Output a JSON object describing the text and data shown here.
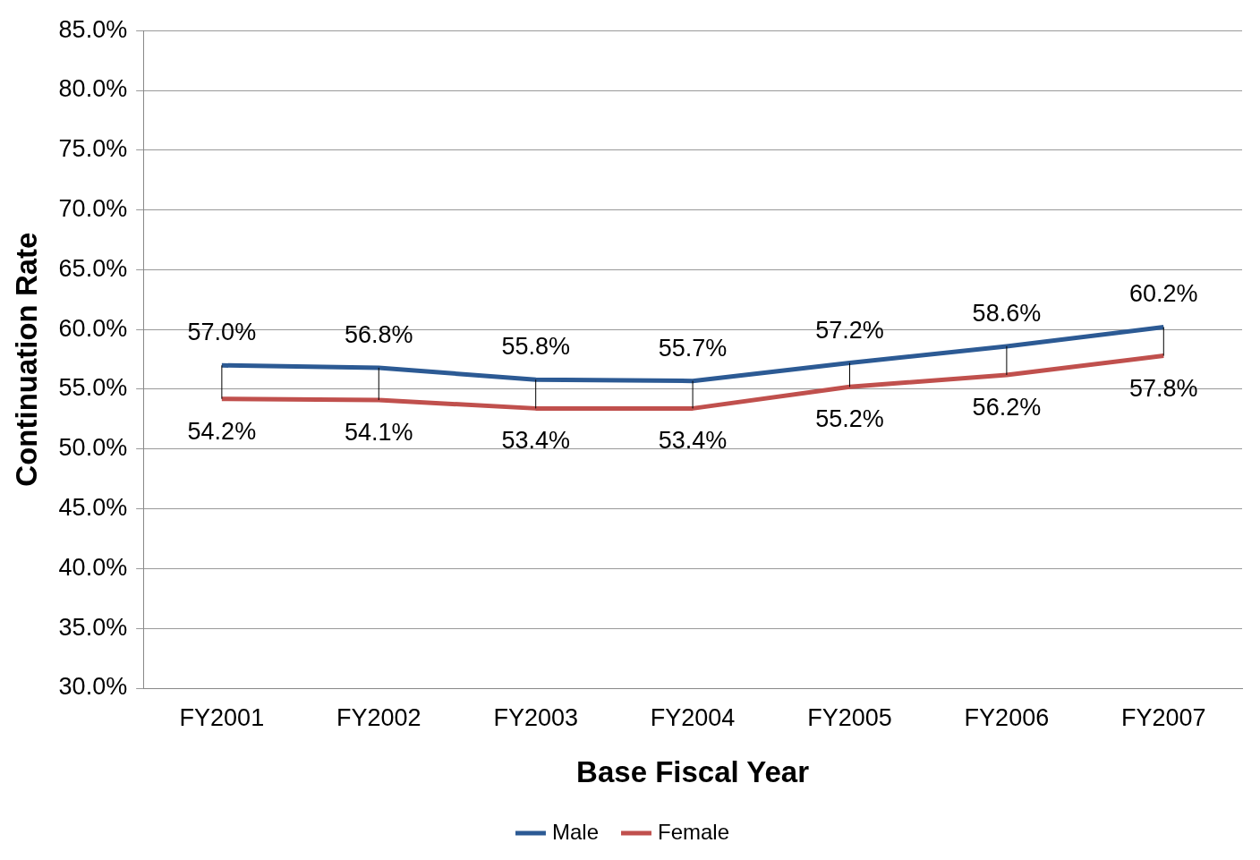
{
  "chart_data": {
    "type": "line",
    "xlabel": "Base Fiscal Year",
    "ylabel": "Continuation Rate",
    "categories": [
      "FY2001",
      "FY2002",
      "FY2003",
      "FY2004",
      "FY2005",
      "FY2006",
      "FY2007"
    ],
    "series": [
      {
        "name": "Male",
        "color": "#2c5a94",
        "values": [
          57.0,
          56.8,
          55.8,
          55.7,
          57.2,
          58.6,
          60.2
        ],
        "value_labels": [
          "57.0%",
          "56.8%",
          "55.8%",
          "55.7%",
          "57.2%",
          "58.6%",
          "60.2%"
        ]
      },
      {
        "name": "Female",
        "color": "#c0504d",
        "values": [
          54.2,
          54.1,
          53.4,
          53.4,
          55.2,
          56.2,
          57.8
        ],
        "value_labels": [
          "54.2%",
          "54.1%",
          "53.4%",
          "53.4%",
          "55.2%",
          "56.2%",
          "57.8%"
        ]
      }
    ],
    "ylim": [
      30,
      85
    ],
    "yticks": [
      {
        "value": 30,
        "label": "30.0%"
      },
      {
        "value": 35,
        "label": "35.0%"
      },
      {
        "value": 40,
        "label": "40.0%"
      },
      {
        "value": 45,
        "label": "45.0%"
      },
      {
        "value": 50,
        "label": "50.0%"
      },
      {
        "value": 55,
        "label": "55.0%"
      },
      {
        "value": 60,
        "label": "60.0%"
      },
      {
        "value": 65,
        "label": "65.0%"
      },
      {
        "value": 70,
        "label": "70.0%"
      },
      {
        "value": 75,
        "label": "75.0%"
      },
      {
        "value": 80,
        "label": "80.0%"
      },
      {
        "value": 85,
        "label": "85.0%"
      }
    ],
    "grid": "y",
    "legend": "bottom",
    "marker": "none",
    "line_style": "solid"
  }
}
